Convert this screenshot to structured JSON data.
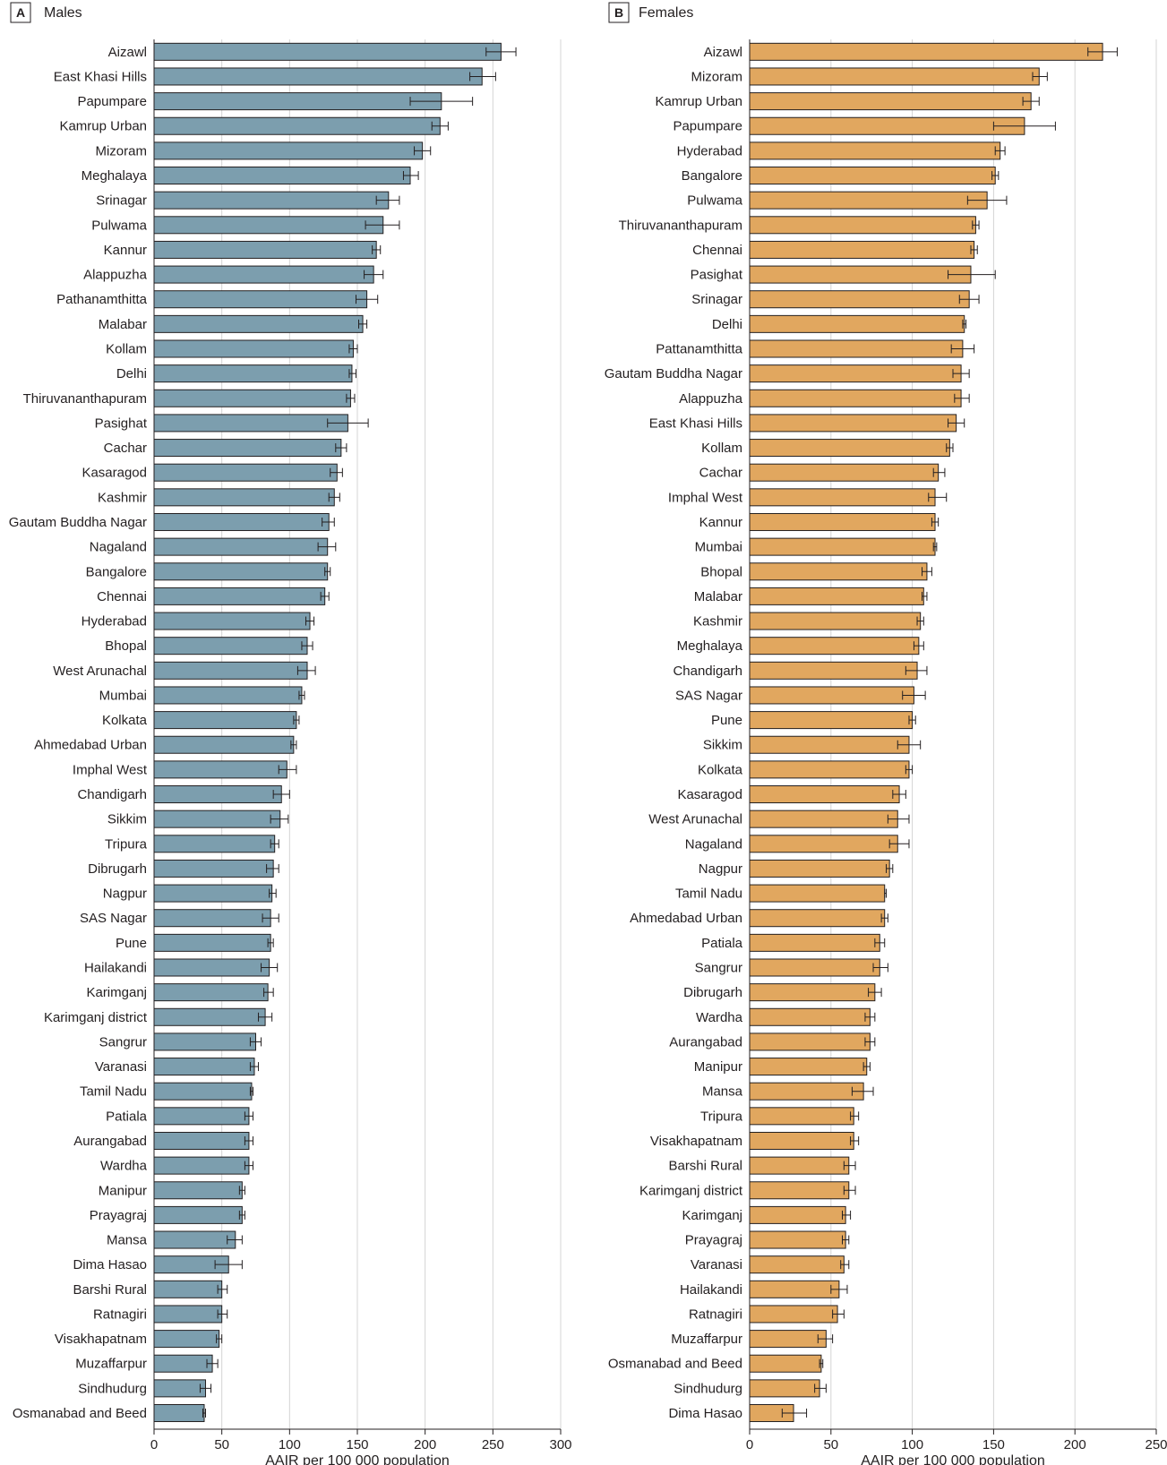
{
  "chart_data": [
    {
      "type": "bar",
      "orientation": "horizontal",
      "panel_letter": "A",
      "title": "Males",
      "xlabel": "AAIR per 100 000 population",
      "xlim": [
        0,
        300
      ],
      "xticks": [
        0,
        50,
        100,
        150,
        200,
        250,
        300
      ],
      "grid": true,
      "color": "#7c9eae",
      "categories": [
        "Aizawl",
        "East Khasi Hills",
        "Papumpare",
        "Kamrup Urban",
        "Mizoram",
        "Meghalaya",
        "Srinagar",
        "Pulwama",
        "Kannur",
        "Alappuzha",
        "Pathanamthitta",
        "Malabar",
        "Kollam",
        "Delhi",
        "Thiruvananthapuram",
        "Pasighat",
        "Cachar",
        "Kasaragod",
        "Kashmir",
        "Gautam Buddha Nagar",
        "Nagaland",
        "Bangalore",
        "Chennai",
        "Hyderabad",
        "Bhopal",
        "West Arunachal",
        "Mumbai",
        "Kolkata",
        "Ahmedabad Urban",
        "Imphal West",
        "Chandigarh",
        "Sikkim",
        "Tripura",
        "Dibrugarh",
        "Nagpur",
        "SAS Nagar",
        "Pune",
        "Hailakandi",
        "Karimganj",
        "Karimganj district",
        "Sangrur",
        "Varanasi",
        "Tamil Nadu",
        "Patiala",
        "Aurangabad",
        "Wardha",
        "Manipur",
        "Prayagraj",
        "Mansa",
        "Dima Hasao",
        "Barshi Rural",
        "Ratnagiri",
        "Visakhapatnam",
        "Muzaffarpur",
        "Sindhudurg",
        "Osmanabad and Beed"
      ],
      "values": [
        256,
        242,
        212,
        211,
        198,
        189,
        173,
        169,
        164,
        162,
        157,
        154,
        147,
        146,
        145,
        143,
        138,
        135,
        133,
        129,
        128,
        128,
        126,
        115,
        113,
        113,
        109,
        105,
        103,
        98,
        94,
        93,
        89,
        88,
        87,
        86,
        86,
        85,
        84,
        82,
        75,
        74,
        72,
        70,
        70,
        70,
        65,
        65,
        60,
        55,
        50,
        50,
        48,
        43,
        38,
        37
      ],
      "ci_low": [
        245,
        233,
        189,
        205,
        192,
        184,
        164,
        156,
        161,
        155,
        149,
        151,
        144,
        144,
        142,
        128,
        134,
        130,
        129,
        124,
        121,
        126,
        123,
        112,
        109,
        106,
        107,
        103,
        101,
        92,
        88,
        86,
        86,
        83,
        85,
        80,
        84,
        79,
        81,
        77,
        71,
        71,
        71,
        67,
        67,
        67,
        63,
        63,
        54,
        45,
        47,
        47,
        46,
        39,
        34,
        36
      ],
      "ci_high": [
        267,
        252,
        235,
        217,
        204,
        195,
        181,
        181,
        167,
        169,
        165,
        157,
        150,
        149,
        148,
        158,
        142,
        139,
        137,
        133,
        134,
        130,
        129,
        118,
        117,
        119,
        111,
        107,
        105,
        105,
        100,
        99,
        92,
        92,
        90,
        92,
        88,
        91,
        88,
        87,
        79,
        77,
        73,
        73,
        73,
        73,
        67,
        67,
        65,
        65,
        54,
        54,
        50,
        47,
        42,
        38
      ]
    },
    {
      "type": "bar",
      "orientation": "horizontal",
      "panel_letter": "B",
      "title": "Females",
      "xlabel": "AAIR per 100 000 population",
      "xlim": [
        0,
        250
      ],
      "xticks": [
        0,
        50,
        100,
        150,
        200,
        250
      ],
      "grid": true,
      "color": "#e1a75f",
      "categories": [
        "Aizawl",
        "Mizoram",
        "Kamrup Urban",
        "Papumpare",
        "Hyderabad",
        "Bangalore",
        "Pulwama",
        "Thiruvananthapuram",
        "Chennai",
        "Pasighat",
        "Srinagar",
        "Delhi",
        "Pattanamthitta",
        "Gautam Buddha Nagar",
        "Alappuzha",
        "East Khasi Hills",
        "Kollam",
        "Cachar",
        "Imphal West",
        "Kannur",
        "Mumbai",
        "Bhopal",
        "Malabar",
        "Kashmir",
        "Meghalaya",
        "Chandigarh",
        "SAS Nagar",
        "Pune",
        "Sikkim",
        "Kolkata",
        "Kasaragod",
        "West Arunachal",
        "Nagaland",
        "Nagpur",
        "Tamil Nadu",
        "Ahmedabad Urban",
        "Patiala",
        "Sangrur",
        "Dibrugarh",
        "Wardha",
        "Aurangabad",
        "Manipur",
        "Mansa",
        "Tripura",
        "Visakhapatnam",
        "Barshi Rural",
        "Karimganj district",
        "Karimganj",
        "Prayagraj",
        "Varanasi",
        "Hailakandi",
        "Ratnagiri",
        "Muzaffarpur",
        "Osmanabad and Beed",
        "Sindhudurg",
        "Dima Hasao"
      ],
      "values": [
        217,
        178,
        173,
        169,
        154,
        151,
        146,
        139,
        138,
        136,
        135,
        132,
        131,
        130,
        130,
        127,
        123,
        116,
        114,
        114,
        114,
        109,
        107,
        105,
        104,
        103,
        101,
        100,
        98,
        98,
        92,
        91,
        91,
        86,
        83,
        83,
        80,
        80,
        77,
        74,
        74,
        72,
        70,
        64,
        64,
        61,
        61,
        59,
        59,
        58,
        55,
        54,
        47,
        44,
        43,
        27
      ],
      "ci_low": [
        208,
        174,
        168,
        150,
        151,
        149,
        134,
        137,
        136,
        122,
        129,
        131,
        124,
        125,
        126,
        122,
        121,
        113,
        110,
        112,
        113,
        106,
        106,
        103,
        101,
        96,
        94,
        98,
        91,
        96,
        88,
        85,
        86,
        84,
        83,
        81,
        77,
        76,
        73,
        71,
        71,
        70,
        63,
        62,
        62,
        58,
        58,
        57,
        57,
        56,
        50,
        51,
        42,
        43,
        40,
        20
      ],
      "ci_high": [
        226,
        183,
        178,
        188,
        157,
        153,
        158,
        141,
        140,
        151,
        141,
        133,
        138,
        135,
        135,
        132,
        125,
        120,
        121,
        116,
        115,
        112,
        109,
        107,
        107,
        109,
        108,
        102,
        105,
        100,
        96,
        98,
        98,
        88,
        84,
        85,
        83,
        85,
        81,
        77,
        77,
        74,
        76,
        67,
        67,
        65,
        65,
        62,
        61,
        61,
        60,
        58,
        51,
        45,
        47,
        35
      ]
    }
  ]
}
